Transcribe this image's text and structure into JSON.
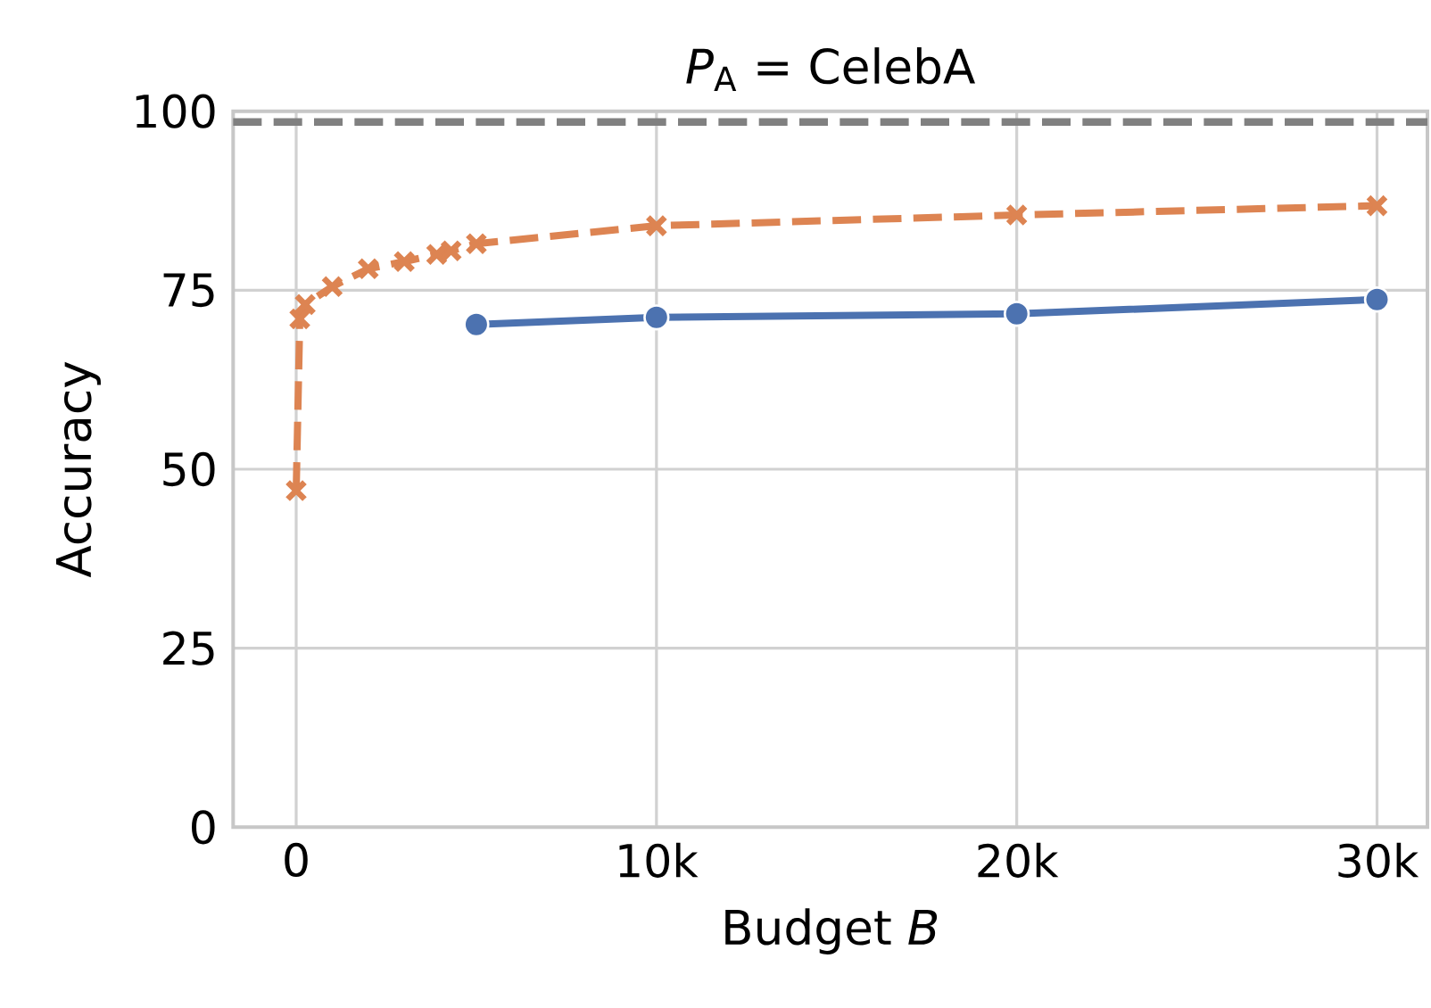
{
  "chart_data": {
    "type": "line",
    "title": "*P*$_{A}$ = CelebA",
    "xlabel": "Budget *B*",
    "ylabel": "Accuracy",
    "xlim": [
      -1750,
      31400
    ],
    "ylim": [
      0,
      100
    ],
    "xticks": [
      0,
      {
        "value": 10000,
        "label": "10k"
      },
      {
        "value": 20000,
        "label": "20k"
      },
      {
        "value": 30000,
        "label": "30k"
      }
    ],
    "yticks": [
      0,
      25,
      50,
      75,
      100
    ],
    "grid": true,
    "ref_lines": [
      {
        "axis": "y",
        "value": 98.5,
        "color": "#808080",
        "line_style": "dashed"
      }
    ],
    "series": [
      {
        "color": "#4c72b0",
        "marker": "circle",
        "line_style": "solid",
        "x": [
          5000,
          10000,
          20000,
          30000
        ],
        "values": [
          70.2,
          71.2,
          71.7,
          73.7
        ]
      },
      {
        "color": "#dd8452",
        "marker": "cross",
        "line_style": "dashed",
        "x": [
          0,
          100,
          250,
          1000,
          2000,
          3000,
          3900,
          4300,
          5000,
          10000,
          20000,
          30000
        ],
        "values": [
          47,
          71,
          73,
          75.5,
          78,
          79,
          80,
          80.5,
          81.5,
          84,
          85.5,
          86.8
        ]
      }
    ]
  }
}
